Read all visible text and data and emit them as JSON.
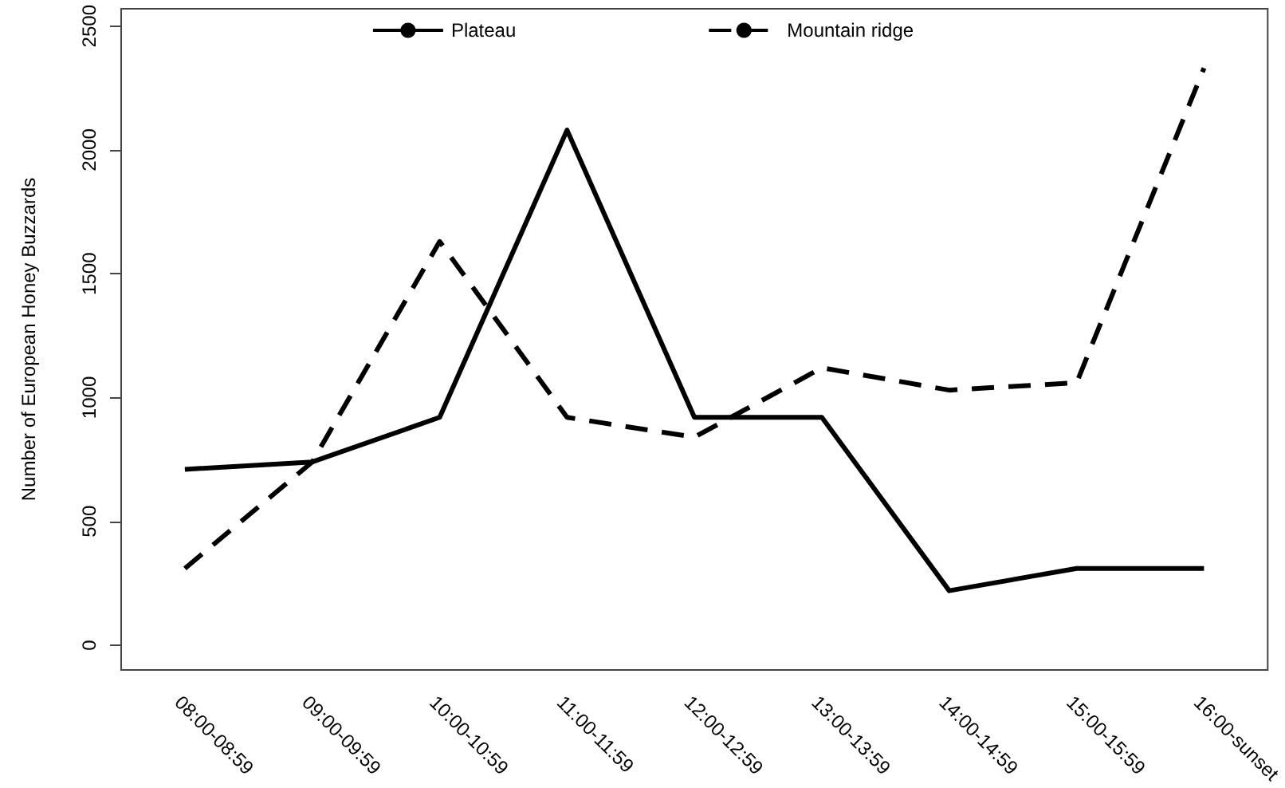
{
  "chart_data": {
    "type": "line",
    "ylabel": "Number of European Honey Buzzards",
    "categories": [
      "08:00-08:59",
      "09:00-09:59",
      "10:00-10:59",
      "11:00-11:59",
      "12:00-12:59",
      "13:00-13:59",
      "14:00-14:59",
      "15:00-15:59",
      "16:00-sunset"
    ],
    "series": [
      {
        "name": "Plateau",
        "color": "#000000",
        "line_style": "solid",
        "values": [
          710,
          740,
          920,
          2080,
          920,
          920,
          220,
          310,
          310
        ]
      },
      {
        "name": "Mountain ridge",
        "color": "#000000",
        "line_style": "dashed",
        "values": [
          310,
          740,
          1630,
          920,
          840,
          1120,
          1030,
          1060,
          2330
        ]
      }
    ],
    "ylim": [
      -100,
      2570
    ],
    "yticks": [
      0,
      500,
      1000,
      1500,
      2000,
      2500
    ],
    "grid": false,
    "legend": "top",
    "marker": "none"
  }
}
